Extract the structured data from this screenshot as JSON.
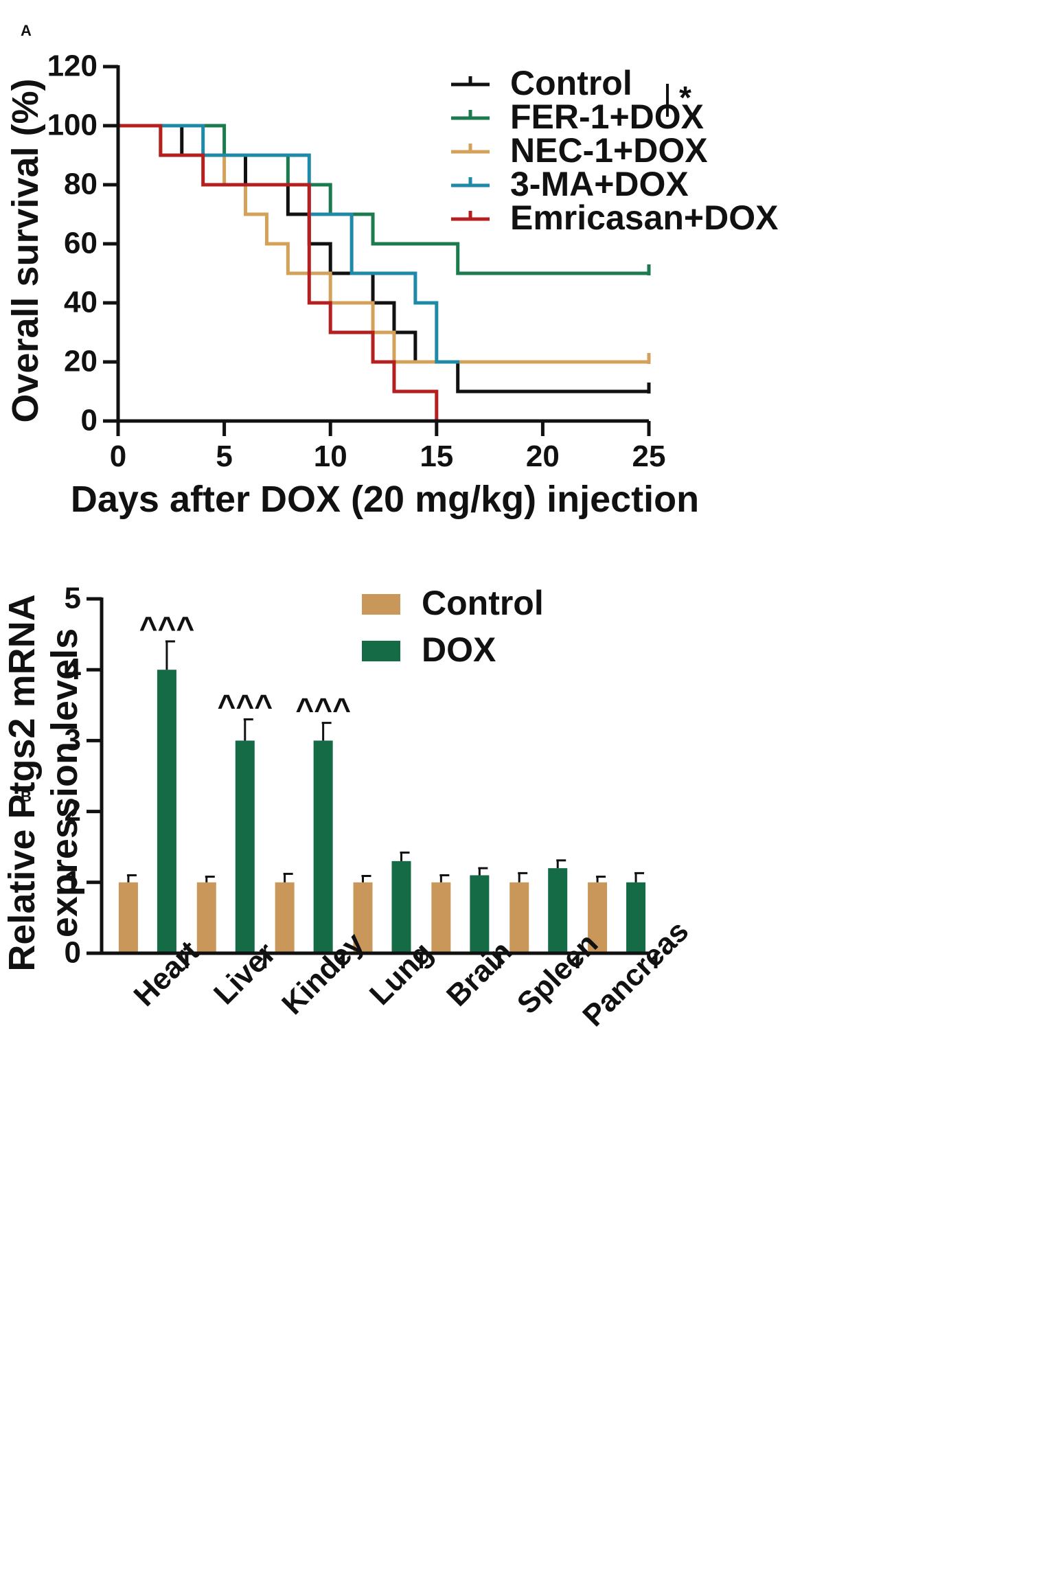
{
  "chart_data": [
    {
      "panel": "A",
      "type": "line",
      "subtype": "kaplan-meier step survival curves",
      "xlabel": "Days after DOX (20 mg/kg) injection",
      "ylabel": "Overall survival (%)",
      "xlim": [
        0,
        25
      ],
      "ylim": [
        0,
        120
      ],
      "xticks": [
        "0",
        "5",
        "10",
        "15",
        "20",
        "25"
      ],
      "yticks": [
        "0",
        "20",
        "40",
        "60",
        "80",
        "100",
        "120"
      ],
      "legend_position": "top-right",
      "significance": {
        "label": "*",
        "between": [
          "Control",
          "FER-1+DOX"
        ]
      },
      "series": [
        {
          "name": "Control",
          "color": "#111111",
          "steps": [
            [
              0,
              100
            ],
            [
              3,
              90
            ],
            [
              6,
              80
            ],
            [
              8,
              70
            ],
            [
              9,
              60
            ],
            [
              10,
              50
            ],
            [
              12,
              40
            ],
            [
              13,
              30
            ],
            [
              14,
              20
            ],
            [
              16,
              10
            ],
            [
              25,
              10
            ]
          ]
        },
        {
          "name": "FER-1+DOX",
          "color": "#1b7a4e",
          "steps": [
            [
              0,
              100
            ],
            [
              5,
              90
            ],
            [
              8,
              80
            ],
            [
              10,
              70
            ],
            [
              12,
              60
            ],
            [
              16,
              50
            ],
            [
              25,
              50
            ]
          ]
        },
        {
          "name": "NEC-1+DOX",
          "color": "#d3a15a",
          "steps": [
            [
              0,
              100
            ],
            [
              2,
              90
            ],
            [
              5,
              80
            ],
            [
              6,
              70
            ],
            [
              7,
              60
            ],
            [
              8,
              50
            ],
            [
              10,
              40
            ],
            [
              12,
              30
            ],
            [
              13,
              20
            ],
            [
              25,
              20
            ]
          ]
        },
        {
          "name": "3-MA+DOX",
          "color": "#1f8aa8",
          "steps": [
            [
              0,
              100
            ],
            [
              4,
              90
            ],
            [
              9,
              80
            ],
            [
              9,
              70
            ],
            [
              11,
              60
            ],
            [
              11,
              50
            ],
            [
              14,
              40
            ],
            [
              15,
              30
            ],
            [
              15,
              20
            ],
            [
              16,
              20
            ]
          ]
        },
        {
          "name": "Emricasan+DOX",
          "color": "#b3201f",
          "steps": [
            [
              0,
              100
            ],
            [
              2,
              90
            ],
            [
              4,
              80
            ],
            [
              9,
              50
            ],
            [
              9,
              40
            ],
            [
              10,
              30
            ],
            [
              12,
              20
            ],
            [
              13,
              10
            ],
            [
              15,
              0
            ]
          ]
        }
      ]
    },
    {
      "panel": "B",
      "type": "bar",
      "ylabel_lines": [
        "Relative Ptgs2 mRNA",
        "expression levels"
      ],
      "ylim": [
        0,
        5
      ],
      "yticks": [
        "0",
        "1",
        "2",
        "3",
        "4",
        "5"
      ],
      "categories": [
        "Heart",
        "Liver",
        "Kindey",
        "Lung",
        "Brain",
        "Spleen",
        "Pancreas"
      ],
      "legend_position": "top-right",
      "series": [
        {
          "name": "Control",
          "color": "#c9975a",
          "values": [
            1.0,
            1.0,
            1.0,
            1.0,
            1.0,
            1.0,
            1.0
          ],
          "errors": [
            0.1,
            0.08,
            0.12,
            0.09,
            0.1,
            0.13,
            0.08
          ]
        },
        {
          "name": "DOX",
          "color": "#146b46",
          "values": [
            4.0,
            3.0,
            3.0,
            1.3,
            1.1,
            1.2,
            1.0
          ],
          "errors": [
            0.4,
            0.3,
            0.25,
            0.12,
            0.1,
            0.11,
            0.13
          ]
        }
      ],
      "annotations": [
        {
          "category": "Heart",
          "label": "^^^"
        },
        {
          "category": "Liver",
          "label": "^^^"
        },
        {
          "category": "Kindey",
          "label": "^^^"
        }
      ]
    }
  ]
}
